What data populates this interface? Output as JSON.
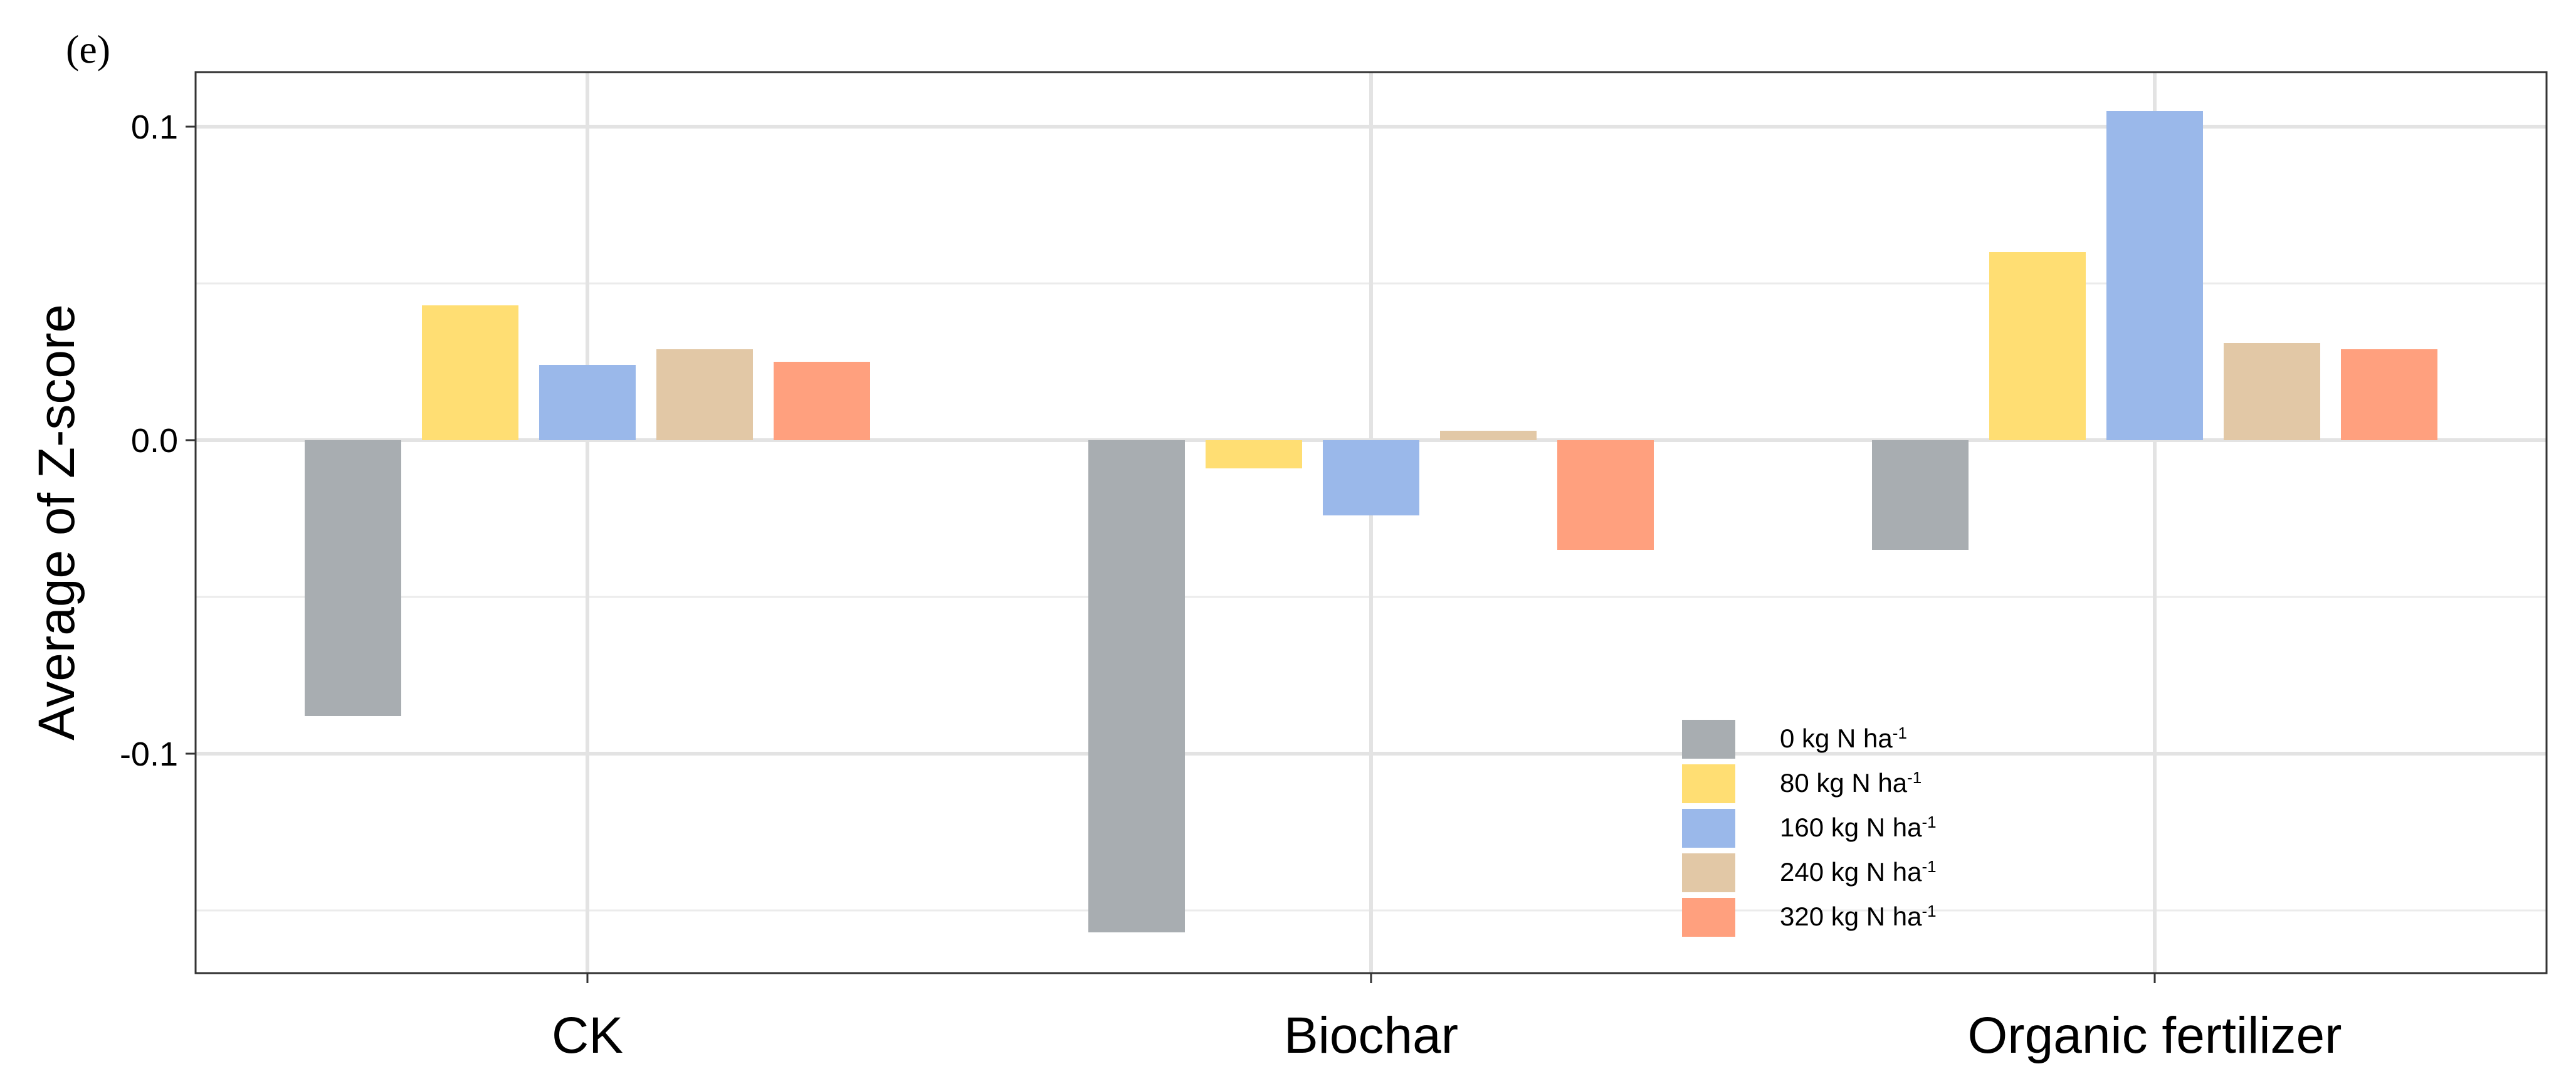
{
  "panel_label": "(e)",
  "chart_data": {
    "type": "bar",
    "title": "",
    "xlabel": "",
    "ylabel": "Average of Z-score",
    "ylim": [
      -0.17,
      0.118
    ],
    "yticks": [
      0.1,
      0.0,
      -0.1
    ],
    "ytick_labels": [
      "0.1",
      "0.0",
      "-0.1"
    ],
    "minor_grid": [
      0.05,
      -0.05,
      -0.15
    ],
    "grid": true,
    "legend_position": "bottom-center",
    "categories": [
      "CK",
      "Biochar",
      "Organic fertilizer"
    ],
    "series": [
      {
        "name": "0 kg N ha",
        "sup": "-1",
        "color": "#A8ADB1",
        "values": [
          -0.088,
          -0.157,
          -0.035
        ]
      },
      {
        "name": "80 kg N ha",
        "sup": "-1",
        "color": "#FFDE73",
        "values": [
          0.043,
          -0.009,
          0.06
        ]
      },
      {
        "name": "160 kg N ha",
        "sup": "-1",
        "color": "#9AB8EA",
        "values": [
          0.024,
          -0.024,
          0.105
        ]
      },
      {
        "name": "240 kg N ha",
        "sup": "-1",
        "color": "#E2C8A6",
        "values": [
          0.029,
          0.003,
          0.031
        ]
      },
      {
        "name": "320 kg N ha",
        "sup": "-1",
        "color": "#FFA07E",
        "values": [
          0.025,
          -0.035,
          0.029
        ]
      }
    ]
  }
}
